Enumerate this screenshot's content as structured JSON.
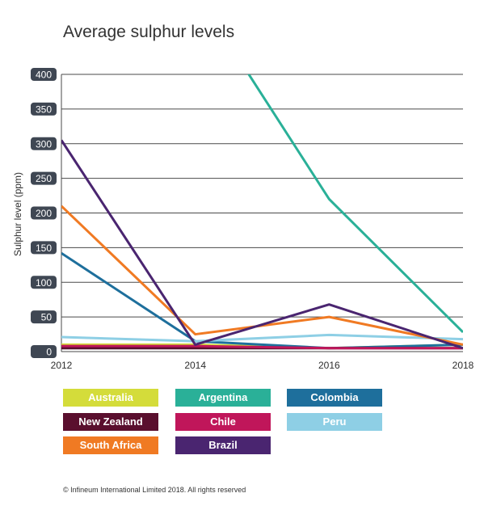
{
  "chart_data": {
    "type": "line",
    "title": "Average sulphur levels",
    "ylabel": "Sulphur level (ppm)",
    "xlabel": "",
    "ylim": [
      0,
      400
    ],
    "yticks": [
      0,
      50,
      100,
      150,
      200,
      250,
      300,
      350,
      400
    ],
    "x": [
      2012,
      2014,
      2016,
      2018
    ],
    "xtick_labels": [
      "2012",
      "2014",
      "2016",
      "2018"
    ],
    "grid": true,
    "series": [
      {
        "name": "Australia",
        "color": "#d4dc3a",
        "values": [
          10,
          10,
          5,
          10
        ]
      },
      {
        "name": "Argentina",
        "color": "#2ab098",
        "values": [
          null,
          520,
          220,
          28
        ]
      },
      {
        "name": "Colombia",
        "color": "#1e6f9c",
        "values": [
          142,
          15,
          5,
          10
        ]
      },
      {
        "name": "New Zealand",
        "color": "#5a0f2e",
        "values": [
          5,
          5,
          5,
          5
        ]
      },
      {
        "name": "Chile",
        "color": "#c0165a",
        "values": [
          8,
          8,
          5,
          5
        ]
      },
      {
        "name": "Peru",
        "color": "#8ecfe5",
        "values": [
          21,
          15,
          24,
          18
        ]
      },
      {
        "name": "South Africa",
        "color": "#f07a23",
        "values": [
          210,
          25,
          50,
          10
        ]
      },
      {
        "name": "Brazil",
        "color": "#4a2570",
        "values": [
          305,
          10,
          68,
          5
        ]
      }
    ]
  },
  "footer": "© Infineum International Limited 2018. All rights reserved"
}
